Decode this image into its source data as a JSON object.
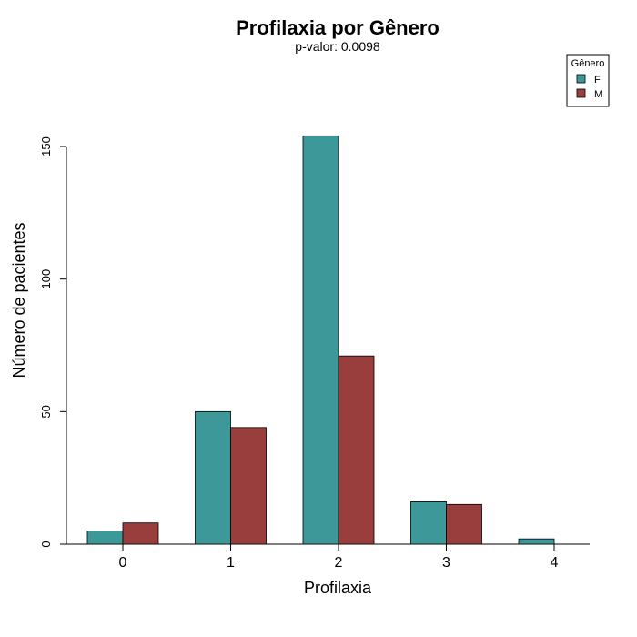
{
  "chart_data": {
    "type": "bar",
    "title": "Profilaxia por Gênero",
    "subtitle": "p-valor: 0.0098",
    "xlabel": "Profilaxia",
    "ylabel": "Número de pacientes",
    "categories": [
      "0",
      "1",
      "2",
      "3",
      "4"
    ],
    "series": [
      {
        "name": "F",
        "color": "#3D9999",
        "values": [
          5,
          50,
          154,
          16,
          2
        ]
      },
      {
        "name": "M",
        "color": "#9A3D3D",
        "values": [
          8,
          44,
          71,
          15,
          0
        ]
      }
    ],
    "yticks": [
      0,
      50,
      100,
      150
    ],
    "ylim": [
      0,
      150
    ],
    "grid": false,
    "legend": {
      "title": "Gênero",
      "position": "top-right"
    }
  }
}
